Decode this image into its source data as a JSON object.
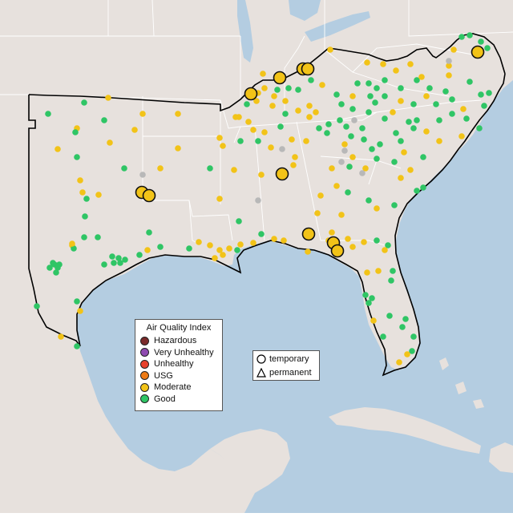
{
  "legend": {
    "title": "Air Quality Index",
    "items": [
      {
        "label": "Hazardous",
        "color": "#7a2a2a"
      },
      {
        "label": "Very Unhealthy",
        "color": "#8e4ab0"
      },
      {
        "label": "Unhealthy",
        "color": "#e8412c"
      },
      {
        "label": "USG",
        "color": "#ee7b15"
      },
      {
        "label": "Moderate",
        "color": "#f2c318"
      },
      {
        "label": "Good",
        "color": "#2fc565"
      }
    ]
  },
  "shape_legend": {
    "items": [
      {
        "label": "temporary",
        "shape": "circle-icon"
      },
      {
        "label": "permanent",
        "shape": "triangle-icon"
      }
    ]
  },
  "colors": {
    "land": "#e7e1dd",
    "water": "#b4cde1",
    "region_outline": "#000000",
    "state_border": "#ffffff",
    "inactive_site": "#b8b8b8"
  }
}
